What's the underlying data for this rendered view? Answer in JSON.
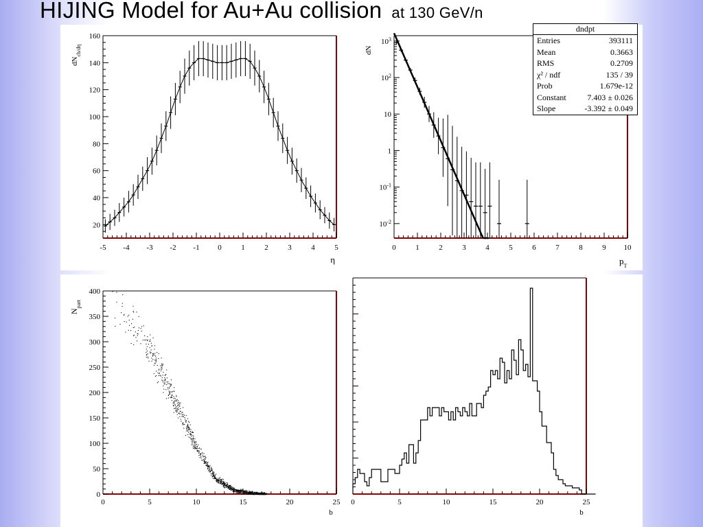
{
  "slide": {
    "title": "HIJING  Model  for  Au+Au  collision",
    "title_suffix": "at  130  GeV/n"
  },
  "stats_box": {
    "title": "dndpt",
    "rows": [
      {
        "label": "Entries",
        "value": "393111"
      },
      {
        "label": "Mean",
        "value": "0.3663"
      },
      {
        "label": "RMS",
        "value": "0.2709"
      },
      {
        "label": "χ² / ndf",
        "value": "135 / 39"
      },
      {
        "label": "Prob",
        "value": "1.679e-12"
      },
      {
        "label": "Constant",
        "value": "7.403 ± 0.026"
      },
      {
        "label": "Slope",
        "value": "-3.392 ± 0.049"
      }
    ]
  },
  "colors": {
    "frame_right": "#8b0000",
    "marker": "#000000"
  },
  "chart_data": [
    {
      "id": "eta",
      "type": "line",
      "xlabel": "η",
      "ylabel": "dN_ch/dη",
      "xlim": [
        -5,
        5
      ],
      "ylim": [
        10,
        160
      ],
      "xticks": [
        "-5",
        "-4",
        "-3",
        "-2",
        "-1",
        "0",
        "1",
        "2",
        "3",
        "4",
        "5"
      ],
      "yticks": [
        "20",
        "40",
        "60",
        "80",
        "100",
        "120",
        "140",
        "160"
      ],
      "x": [
        -4.9,
        -4.7,
        -4.5,
        -4.3,
        -4.1,
        -3.9,
        -3.7,
        -3.5,
        -3.3,
        -3.1,
        -2.9,
        -2.7,
        -2.5,
        -2.3,
        -2.1,
        -1.9,
        -1.7,
        -1.5,
        -1.3,
        -1.1,
        -0.9,
        -0.7,
        -0.5,
        -0.3,
        -0.1,
        0.1,
        0.3,
        0.5,
        0.7,
        0.9,
        1.1,
        1.3,
        1.5,
        1.7,
        1.9,
        2.1,
        2.3,
        2.5,
        2.7,
        2.9,
        3.1,
        3.3,
        3.5,
        3.7,
        3.9,
        4.1,
        4.3,
        4.5,
        4.7,
        4.9
      ],
      "y": [
        19,
        22,
        25,
        29,
        33,
        37,
        42,
        48,
        54,
        60,
        67,
        75,
        84,
        93,
        103,
        113,
        122,
        130,
        136,
        140,
        143,
        143,
        142,
        141,
        140,
        140,
        140,
        141,
        142,
        143,
        143,
        141,
        136,
        130,
        122,
        113,
        103,
        93,
        84,
        75,
        67,
        60,
        53,
        47,
        41,
        36,
        31,
        27,
        23,
        20
      ],
      "err": [
        5,
        6,
        6,
        7,
        7,
        8,
        8,
        9,
        9,
        10,
        10,
        11,
        11,
        11,
        12,
        12,
        12,
        13,
        13,
        13,
        13,
        13,
        13,
        13,
        13,
        13,
        13,
        13,
        13,
        13,
        13,
        13,
        13,
        12,
        12,
        12,
        11,
        11,
        11,
        10,
        10,
        9,
        9,
        8,
        8,
        7,
        7,
        6,
        6,
        5
      ]
    },
    {
      "id": "pt",
      "type": "scatter",
      "yscale": "log",
      "xlabel": "p_T",
      "ylabel": "dN/dp_T",
      "xlim": [
        0,
        10
      ],
      "ylim": [
        0.004,
        1400
      ],
      "xticks": [
        "0",
        "1",
        "2",
        "3",
        "4",
        "5",
        "6",
        "7",
        "8",
        "9",
        "10"
      ],
      "ytick_values": [
        0.01,
        0.1,
        1,
        10,
        100,
        1000
      ],
      "fit": {
        "constant": 7.403,
        "slope": -3.392,
        "x_range": [
          0,
          4.05
        ]
      },
      "points": [
        {
          "x": 0.1,
          "y": 900,
          "err": 0.05
        },
        {
          "x": 0.3,
          "y": 560,
          "err": 0.05
        },
        {
          "x": 0.5,
          "y": 300,
          "err": 0.05
        },
        {
          "x": 0.7,
          "y": 160,
          "err": 0.06
        },
        {
          "x": 0.9,
          "y": 83,
          "err": 0.08
        },
        {
          "x": 1.1,
          "y": 42,
          "err": 0.1
        },
        {
          "x": 1.3,
          "y": 21,
          "err": 0.15
        },
        {
          "x": 1.5,
          "y": 10,
          "err": 0.22
        },
        {
          "x": 1.7,
          "y": 5,
          "err": 0.35
        },
        {
          "x": 1.9,
          "y": 2.5,
          "err": 0.5
        },
        {
          "x": 2.1,
          "y": 1.2,
          "err": 0.8
        },
        {
          "x": 2.3,
          "y": 0.6,
          "err": 1.3
        },
        {
          "x": 2.5,
          "y": 0.3,
          "err": 1.8
        },
        {
          "x": 2.7,
          "y": 0.15,
          "err": 2.3
        },
        {
          "x": 2.9,
          "y": 0.08,
          "err": 2.6
        },
        {
          "x": 3.1,
          "y": 0.06,
          "err": 2.8
        },
        {
          "x": 3.3,
          "y": 0.04,
          "err": 3.0
        },
        {
          "x": 3.5,
          "y": 0.03,
          "err": 3.0
        },
        {
          "x": 3.7,
          "y": 0.03,
          "err": 3.0
        },
        {
          "x": 3.9,
          "y": 0.02,
          "err": 3.0
        },
        {
          "x": 4.1,
          "y": 0.03,
          "err": 3.0
        },
        {
          "x": 4.5,
          "y": 0.01,
          "err": 3.0
        },
        {
          "x": 5.7,
          "y": 0.01,
          "err": 3.0
        }
      ]
    },
    {
      "id": "npart",
      "type": "scatter",
      "xlabel": "b",
      "ylabel": "N_part",
      "xlim": [
        0,
        25
      ],
      "ylim": [
        0,
        400
      ],
      "xticks": [
        "0",
        "5",
        "10",
        "15",
        "20",
        "25"
      ],
      "yticks": [
        "0",
        "50",
        "100",
        "150",
        "200",
        "250",
        "300",
        "350",
        "400"
      ],
      "band": [
        {
          "b": 0.5,
          "n": 378
        },
        {
          "b": 2,
          "n": 360
        },
        {
          "b": 4,
          "n": 318
        },
        {
          "b": 6,
          "n": 248
        },
        {
          "b": 8,
          "n": 170
        },
        {
          "b": 10,
          "n": 92
        },
        {
          "b": 12,
          "n": 32
        },
        {
          "b": 14,
          "n": 8
        },
        {
          "b": 16,
          "n": 2
        },
        {
          "b": 17.5,
          "n": 0
        }
      ],
      "band_spread": 22
    },
    {
      "id": "bhist",
      "type": "bar",
      "style": "step",
      "xlabel": "b",
      "xlim": [
        0,
        25
      ],
      "ylim": [
        0,
        1
      ],
      "xticks": [
        "0",
        "5",
        "10",
        "15",
        "20",
        "25"
      ],
      "bin_width": 0.25,
      "x0": 0,
      "values": [
        0.05,
        0.08,
        0.12,
        0.1,
        0.1,
        0.06,
        0.04,
        0.08,
        0.12,
        0.12,
        0.12,
        0.12,
        0.06,
        0.06,
        0.06,
        0.12,
        0.12,
        0.12,
        0.1,
        0.1,
        0.14,
        0.17,
        0.2,
        0.15,
        0.24,
        0.24,
        0.15,
        0.2,
        0.26,
        0.36,
        0.36,
        0.36,
        0.42,
        0.38,
        0.42,
        0.42,
        0.42,
        0.38,
        0.42,
        0.4,
        0.4,
        0.36,
        0.4,
        0.36,
        0.42,
        0.4,
        0.38,
        0.42,
        0.4,
        0.38,
        0.44,
        0.38,
        0.38,
        0.44,
        0.44,
        0.42,
        0.48,
        0.5,
        0.52,
        0.6,
        0.58,
        0.6,
        0.56,
        0.66,
        0.64,
        0.54,
        0.6,
        0.56,
        0.7,
        0.65,
        0.58,
        0.75,
        0.7,
        0.6,
        0.63,
        0.57,
        1.0,
        0.55,
        0.55,
        0.5,
        0.4,
        0.33,
        0.33,
        0.25,
        0.25,
        0.2,
        0.12,
        0.09,
        0.07,
        0.07,
        0.05,
        0.04,
        0.04,
        0.04,
        0.03,
        0.03,
        0.03,
        0.02,
        0.0,
        0.0,
        0.0,
        0.0,
        0.0,
        0.0
      ]
    }
  ]
}
